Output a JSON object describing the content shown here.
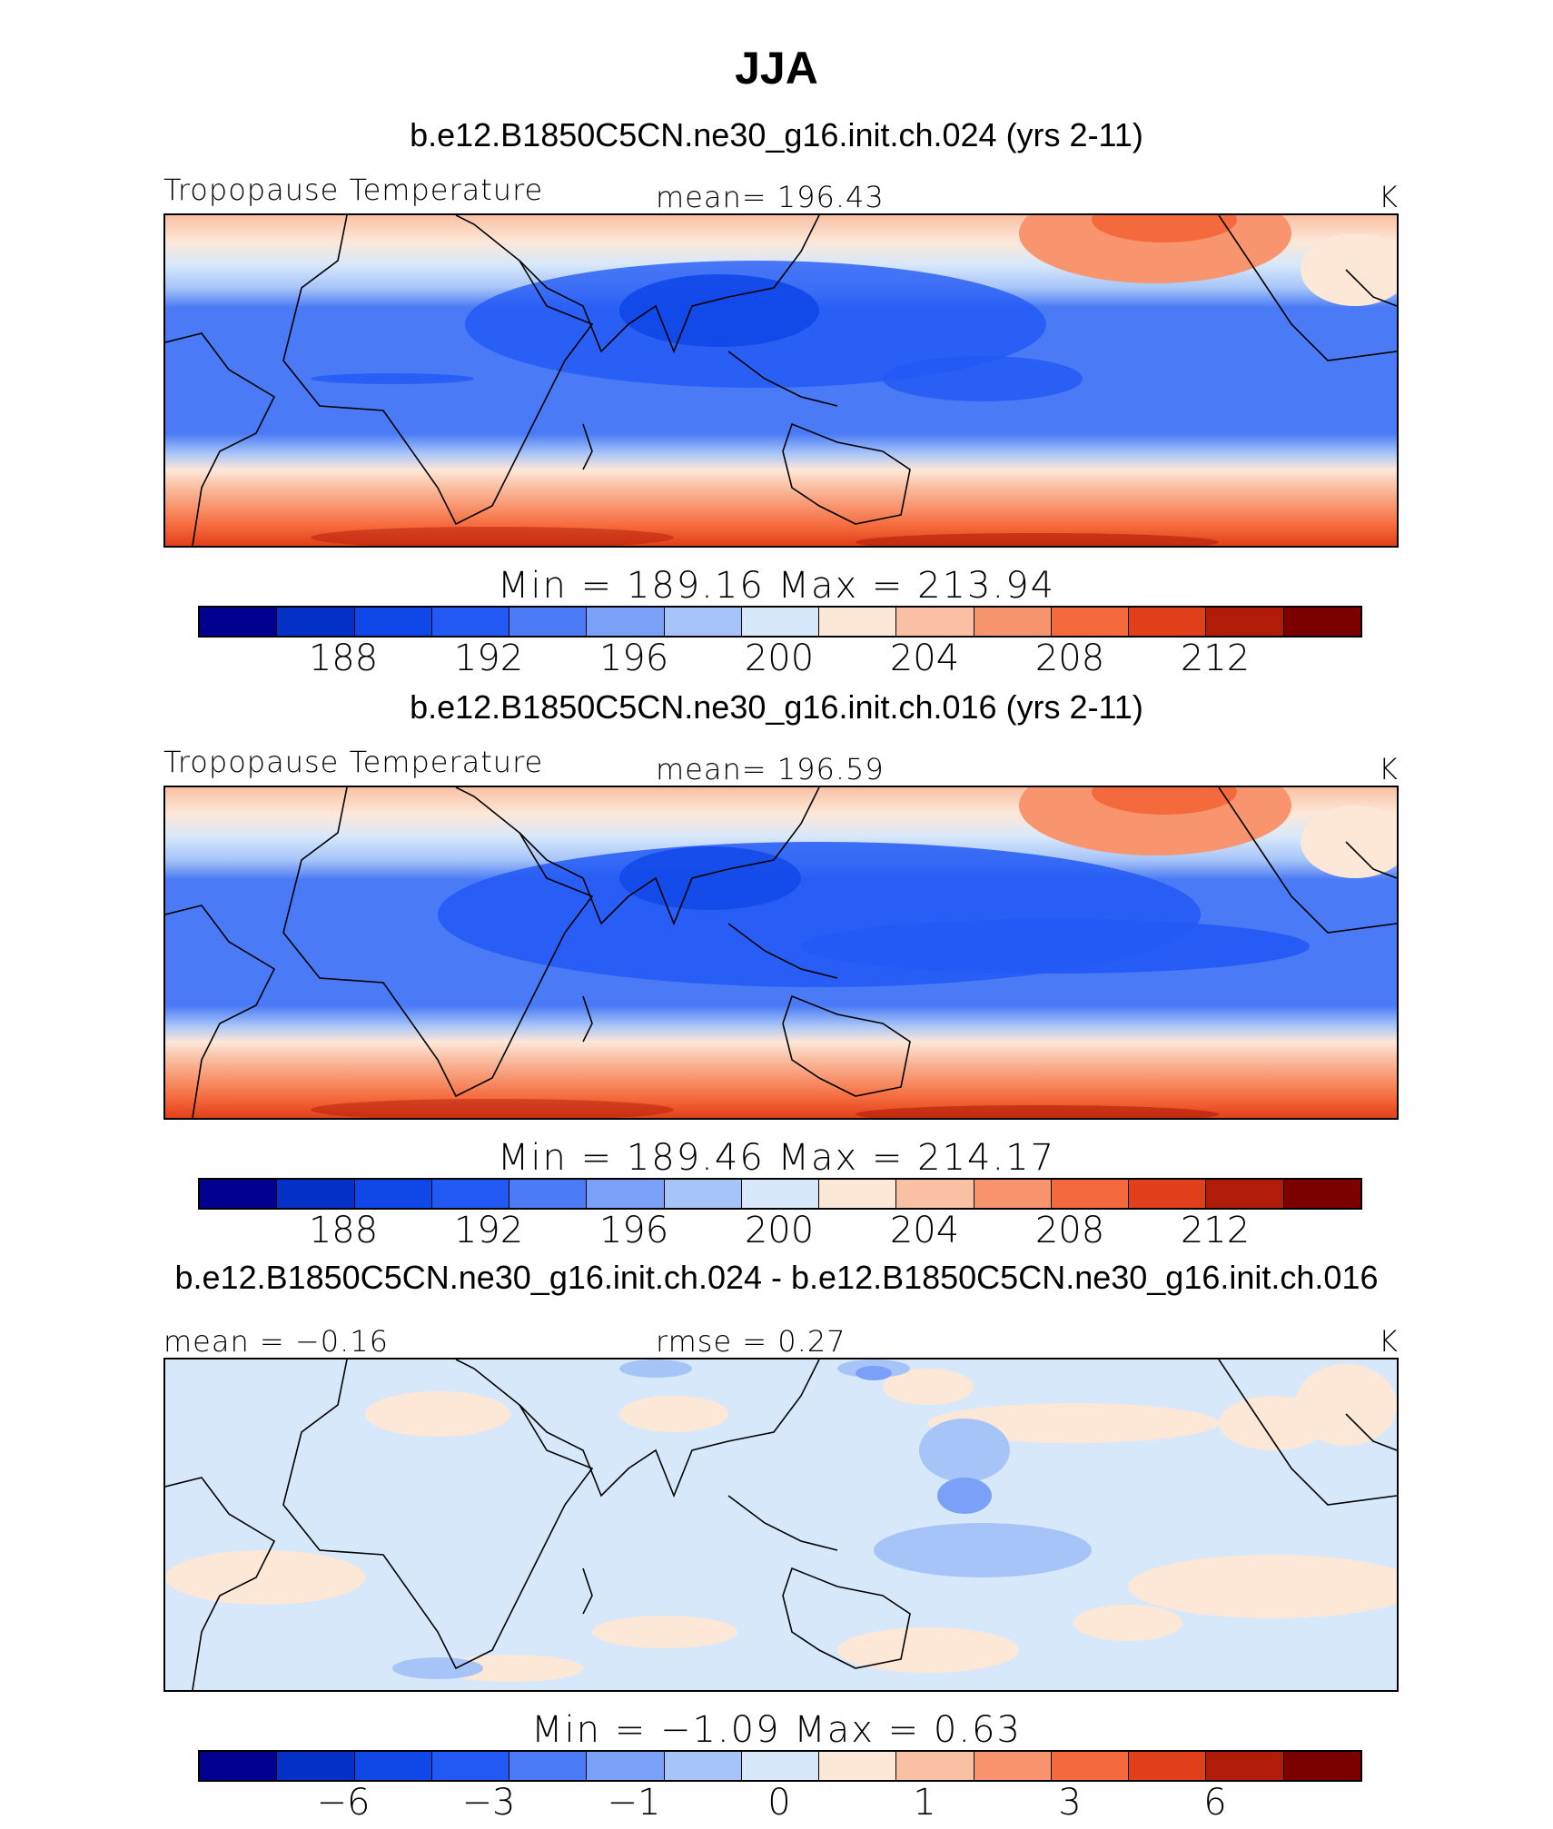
{
  "chart_data": {
    "type": "heatmap",
    "title": "JJA",
    "variable": "Tropopause Temperature",
    "units": "K",
    "palette": [
      "#02008e",
      "#0432c8",
      "#0f47e8",
      "#2259f5",
      "#4a7af5",
      "#7aa0f7",
      "#a6c4f8",
      "#d7e8fb",
      "#fde8d8",
      "#f9c0a4",
      "#f8956f",
      "#f56a3c",
      "#e2401a",
      "#b11c08",
      "#7b0000"
    ],
    "panels": [
      {
        "id": "case1",
        "case_title": "b.e12.B1850C5CN.ne30_g16.init.ch.024 (yrs 2-11)",
        "left_label": "Tropopause Temperature",
        "center_label": "mean= 196.43",
        "right_label": "K",
        "minmax_label": "Min  =  189.16  Max  =  213.94",
        "min": 189.16,
        "max": 213.94,
        "mean": 196.43,
        "colorbar_ticks": [
          "188",
          "192",
          "196",
          "200",
          "204",
          "208",
          "212"
        ]
      },
      {
        "id": "case2",
        "case_title": "b.e12.B1850C5CN.ne30_g16.init.ch.016 (yrs 2-11)",
        "left_label": "Tropopause Temperature",
        "center_label": "mean= 196.59",
        "right_label": "K",
        "minmax_label": "Min  =  189.46  Max  =  214.17",
        "min": 189.46,
        "max": 214.17,
        "mean": 196.59,
        "colorbar_ticks": [
          "188",
          "192",
          "196",
          "200",
          "204",
          "208",
          "212"
        ]
      },
      {
        "id": "diff",
        "case_title": "b.e12.B1850C5CN.ne30_g16.init.ch.024 - b.e12.B1850C5CN.ne30_g16.init.ch.016",
        "left_label": "mean =   −0.16",
        "center_label": "rmse =     0.27",
        "right_label": "K",
        "minmax_label": "Min  =    −1.09  Max  =      0.63",
        "min": -1.09,
        "max": 0.63,
        "mean": -0.16,
        "rmse": 0.27,
        "colorbar_ticks": [
          "−6",
          "−3",
          "−1",
          "0",
          "1",
          "3",
          "6"
        ]
      }
    ]
  }
}
